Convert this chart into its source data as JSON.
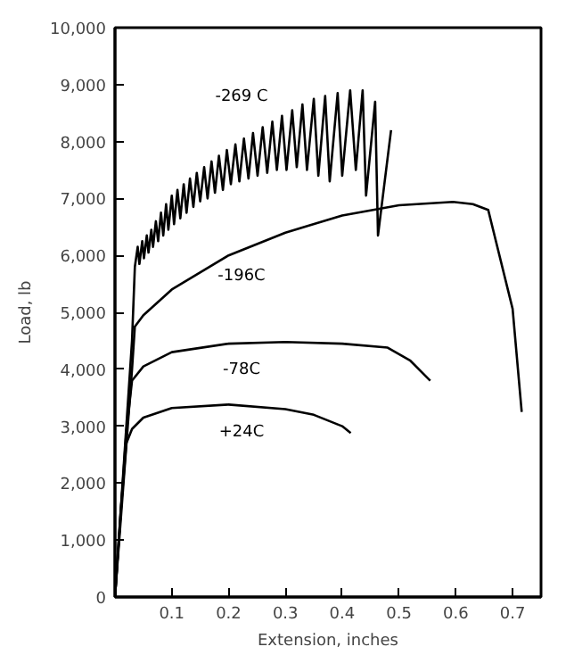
{
  "chart_data": {
    "type": "line",
    "xlabel": "Extension, inches",
    "ylabel": "Load, lb",
    "xlim": [
      0,
      0.75
    ],
    "ylim": [
      0,
      10000
    ],
    "xticks": [
      0.1,
      0.2,
      0.3,
      0.4,
      0.5,
      0.6,
      0.7
    ],
    "yticks": [
      0,
      {
        "value": 1000,
        "label": "1,000"
      },
      {
        "value": 2000,
        "label": "2,000"
      },
      {
        "value": 3000,
        "label": "3,000"
      },
      {
        "value": 4000,
        "label": "4,000"
      },
      {
        "value": 5000,
        "label": "5,000"
      },
      {
        "value": 6000,
        "label": "6,000"
      },
      {
        "value": 7000,
        "label": "7,000"
      },
      {
        "value": 8000,
        "label": "8,000"
      },
      {
        "value": 9000,
        "label": "9,000"
      },
      {
        "value": 10000,
        "label": "10,000"
      }
    ],
    "grid": false,
    "legend": false,
    "marker": "none",
    "line_style": "solid",
    "series": [
      {
        "name": "-269 C",
        "color": "#000000",
        "x": [
          0,
          0.03,
          0.035,
          0.04,
          0.043,
          0.048,
          0.051,
          0.056,
          0.059,
          0.064,
          0.067,
          0.072,
          0.076,
          0.081,
          0.085,
          0.09,
          0.094,
          0.1,
          0.104,
          0.11,
          0.115,
          0.121,
          0.126,
          0.132,
          0.138,
          0.144,
          0.15,
          0.157,
          0.163,
          0.17,
          0.176,
          0.183,
          0.19,
          0.197,
          0.204,
          0.212,
          0.219,
          0.227,
          0.235,
          0.243,
          0.251,
          0.26,
          0.268,
          0.277,
          0.285,
          0.294,
          0.302,
          0.312,
          0.32,
          0.33,
          0.338,
          0.35,
          0.358,
          0.37,
          0.378,
          0.392,
          0.4,
          0.414,
          0.424,
          0.436,
          0.442,
          0.458,
          0.463,
          0.486
        ],
        "values": [
          0,
          4500,
          5800,
          6150,
          5850,
          6250,
          5950,
          6350,
          6050,
          6450,
          6150,
          6600,
          6250,
          6750,
          6350,
          6900,
          6450,
          7050,
          6550,
          7150,
          6650,
          7250,
          6750,
          7350,
          6850,
          7450,
          6950,
          7550,
          7000,
          7650,
          7100,
          7750,
          7150,
          7850,
          7250,
          7950,
          7300,
          8050,
          7350,
          8150,
          7400,
          8250,
          7450,
          8350,
          7500,
          8450,
          7500,
          8550,
          7550,
          8650,
          7500,
          8750,
          7400,
          8800,
          7300,
          8850,
          7400,
          8900,
          7500,
          8900,
          7050,
          8700,
          6350,
          8200
        ]
      },
      {
        "name": "-196C",
        "color": "#000000",
        "x": [
          0,
          0.03,
          0.035,
          0.05,
          0.1,
          0.2,
          0.3,
          0.4,
          0.5,
          0.595,
          0.63,
          0.657,
          0.7,
          0.716
        ],
        "values": [
          0,
          4000,
          4750,
          4950,
          5400,
          6000,
          6400,
          6700,
          6880,
          6940,
          6900,
          6800,
          5060,
          3250
        ]
      },
      {
        "name": "-78C",
        "color": "#000000",
        "x": [
          0,
          0.02,
          0.03,
          0.05,
          0.1,
          0.2,
          0.3,
          0.4,
          0.48,
          0.52,
          0.555
        ],
        "values": [
          0,
          2900,
          3800,
          4050,
          4300,
          4450,
          4480,
          4450,
          4380,
          4150,
          3800
        ]
      },
      {
        "name": "+24C",
        "color": "#000000",
        "x": [
          0,
          0.01,
          0.02,
          0.03,
          0.05,
          0.1,
          0.2,
          0.3,
          0.35,
          0.4,
          0.415
        ],
        "values": [
          0,
          1500,
          2700,
          2950,
          3150,
          3320,
          3380,
          3300,
          3200,
          3000,
          2880
        ]
      }
    ]
  }
}
